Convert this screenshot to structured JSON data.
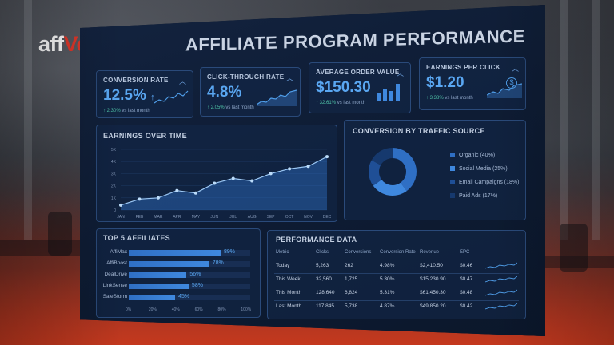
{
  "brand": {
    "logo_aff": "aff",
    "logo_rest": "Vertising"
  },
  "dashboard": {
    "title": "AFFILIATE PROGRAM PERFORMANCE",
    "kpis": [
      {
        "label": "CONVERSION RATE",
        "value": "12.5%",
        "value_suffix": "↑",
        "delta": "↑ 2.30%",
        "delta_note": "vs last month"
      },
      {
        "label": "CLICK-THROUGH RATE",
        "value": "4.8%",
        "delta": "↑ 2.05%",
        "delta_note": "vs last month"
      },
      {
        "label": "AVERAGE ORDER VALUE",
        "value": "$150.30",
        "delta": "↑ 32.61%",
        "delta_note": "vs last month"
      },
      {
        "label": "EARNINGS PER CLICK",
        "value": "$1.20",
        "delta": "↑ 3.38%",
        "delta_note": "vs last month"
      }
    ],
    "earnings": {
      "title": "EARNINGS OVER TIME",
      "y_ticks": [
        "5K",
        "4K",
        "3K",
        "2K",
        "1K",
        "0"
      ],
      "months": [
        "JAN",
        "FEB",
        "MAR",
        "APR",
        "MAY",
        "JUN",
        "JUL",
        "AUG",
        "SEP",
        "OCT",
        "NOV",
        "DEC"
      ]
    },
    "traffic": {
      "title": "CONVERSION BY TRAFFIC SOURCE",
      "items": [
        {
          "label": "Organic (40%)",
          "pct": 40,
          "color": "#2f6fc4"
        },
        {
          "label": "Social Media (25%)",
          "pct": 25,
          "color": "#3f88de"
        },
        {
          "label": "Email Campaigns (18%)",
          "pct": 18,
          "color": "#1f4f96"
        },
        {
          "label": "Paid Ads (17%)",
          "pct": 17,
          "color": "#16396e"
        }
      ]
    },
    "affiliates": {
      "title": "TOP 5 AFFILIATES",
      "rows": [
        {
          "name": "AffiMax",
          "pct_label": "89%",
          "pct": 89
        },
        {
          "name": "AffiBoost",
          "pct_label": "78%",
          "pct": 78
        },
        {
          "name": "DealDrive",
          "pct_label": "56%",
          "pct": 56
        },
        {
          "name": "LinkSense",
          "pct_label": "58%",
          "pct": 58
        },
        {
          "name": "SaleStorm",
          "pct_label": "45%",
          "pct": 45
        }
      ],
      "x_ticks": [
        "0%",
        "20%",
        "40%",
        "60%",
        "80%",
        "100%"
      ]
    },
    "performance": {
      "title": "PERFORMANCE DATA",
      "headers": [
        "Metric",
        "Clicks",
        "Conversions",
        "Conversion Rate",
        "Revenue",
        "EPC"
      ],
      "rows": [
        [
          "Today",
          "5,263",
          "262",
          "4.98%",
          "$2,410.50",
          "$0.46"
        ],
        [
          "This Week",
          "32,560",
          "1,725",
          "5.30%",
          "$15,230.90",
          "$0.47"
        ],
        [
          "This Month",
          "128,640",
          "6,824",
          "5.31%",
          "$61,450.30",
          "$0.48"
        ],
        [
          "Last Month",
          "117,845",
          "5,738",
          "4.87%",
          "$49,850.20",
          "$0.42"
        ]
      ]
    }
  },
  "chart_data": [
    {
      "type": "area",
      "title": "EARNINGS OVER TIME",
      "x": [
        "JAN",
        "FEB",
        "MAR",
        "APR",
        "MAY",
        "JUN",
        "JUL",
        "AUG",
        "SEP",
        "OCT",
        "NOV",
        "DEC"
      ],
      "y": [
        400,
        900,
        1000,
        1600,
        1400,
        2200,
        2600,
        2400,
        3000,
        3400,
        3600,
        4400
      ],
      "ylim": [
        0,
        5000
      ],
      "grid": true
    },
    {
      "type": "pie",
      "title": "CONVERSION BY TRAFFIC SOURCE",
      "categories": [
        "Organic",
        "Social Media",
        "Email Campaigns",
        "Paid Ads"
      ],
      "values": [
        40,
        25,
        18,
        17
      ],
      "legend": "right"
    },
    {
      "type": "bar",
      "title": "TOP 5 AFFILIATES",
      "categories": [
        "AffiMax",
        "AffiBoost",
        "DealDrive",
        "LinkSense",
        "SaleStorm"
      ],
      "values": [
        89,
        78,
        56,
        58,
        45
      ],
      "xlim": [
        0,
        100
      ]
    }
  ]
}
